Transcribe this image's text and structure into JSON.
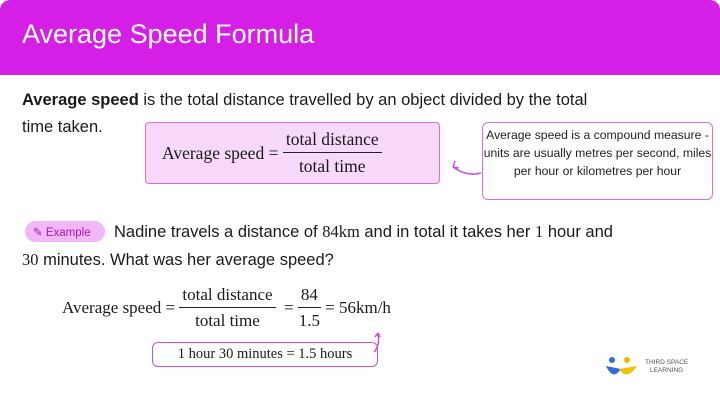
{
  "header": {
    "title": "Average Speed Formula"
  },
  "definition": {
    "bold": "Average speed",
    "rest_line1": " is the total distance travelled by an object divided by the total",
    "line2": "time taken."
  },
  "formula": {
    "lhs": "Average speed",
    "eq": "=",
    "numerator": "total distance",
    "denominator": "total time"
  },
  "callout": {
    "text": "Average speed is a compound measure - units are usually metres per second, miles per hour or kilometres per hour"
  },
  "example": {
    "badge": "Example",
    "line1_a": "Nadine travels a distance of ",
    "dist": "84km",
    "line1_b": " and in total it takes her ",
    "hour": "1",
    "line1_c": " hour and",
    "line2_num": "30",
    "line2_rest": " minutes. What was her average speed?"
  },
  "solution": {
    "lhs": "Average speed",
    "eq": "=",
    "numerator": "total distance",
    "denominator": "total time",
    "eq2": "=",
    "num2": "84",
    "den2": "1.5",
    "result": "= 56km/h",
    "note": "1 hour  30 minutes = 1.5 hours"
  },
  "logo": {
    "line1": "THIRD SPACE",
    "line2": "LEARNING"
  },
  "colors": {
    "brand": "#d51fe6",
    "box_fill": "#f8d8fb",
    "box_border": "#d46ee2"
  }
}
